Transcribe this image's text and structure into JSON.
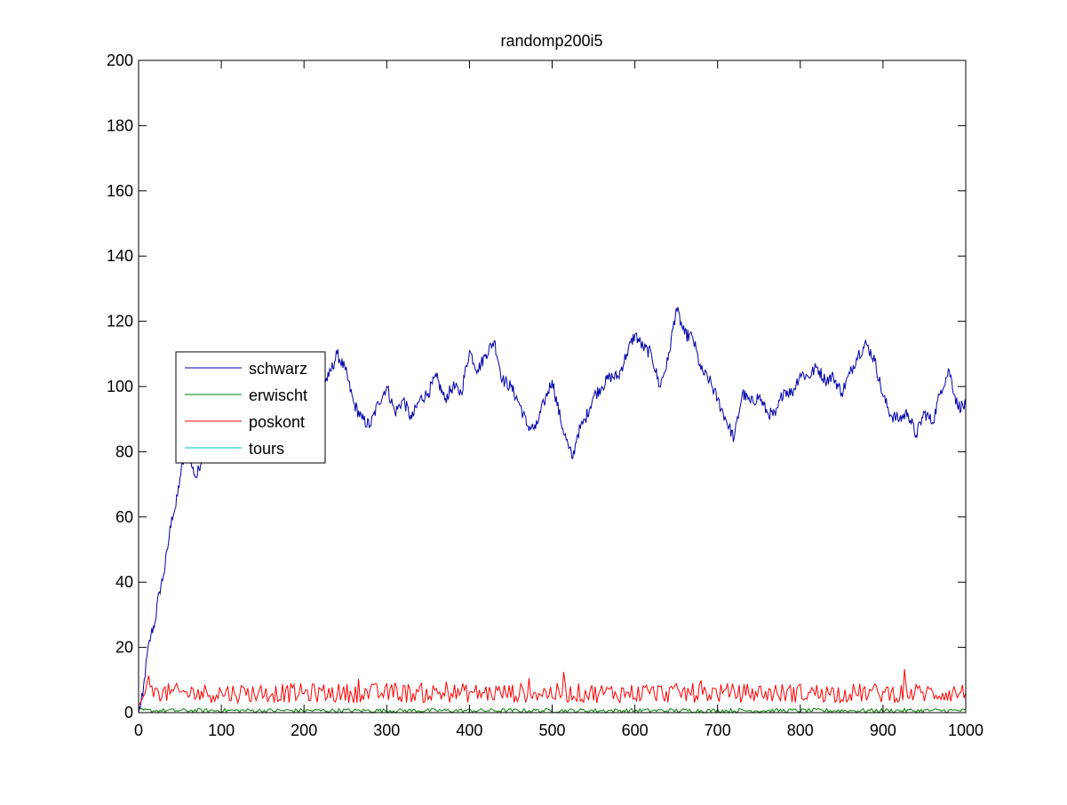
{
  "chart_data": {
    "type": "line",
    "title": "randomp200i5",
    "xlabel": "",
    "ylabel": "",
    "xlim": [
      0,
      1000
    ],
    "ylim": [
      0,
      200
    ],
    "xticks": [
      0,
      100,
      200,
      300,
      400,
      500,
      600,
      700,
      800,
      900,
      1000
    ],
    "yticks": [
      0,
      20,
      40,
      60,
      80,
      100,
      120,
      140,
      160,
      180,
      200
    ],
    "grid": false,
    "legend_position": "middle-left",
    "series": [
      {
        "name": "schwarz",
        "color": "#0000aa",
        "x": [
          0,
          5,
          10,
          15,
          20,
          25,
          30,
          35,
          40,
          45,
          50,
          55,
          60,
          65,
          70,
          80,
          100,
          120,
          150,
          180,
          200,
          210,
          220,
          230,
          240,
          250,
          260,
          270,
          280,
          290,
          300,
          310,
          320,
          330,
          340,
          350,
          360,
          370,
          380,
          390,
          400,
          410,
          420,
          430,
          440,
          450,
          460,
          470,
          480,
          490,
          500,
          510,
          520,
          525,
          530,
          540,
          550,
          560,
          570,
          580,
          590,
          600,
          610,
          620,
          630,
          640,
          650,
          660,
          670,
          680,
          690,
          700,
          710,
          720,
          730,
          740,
          750,
          760,
          770,
          780,
          790,
          800,
          810,
          820,
          830,
          840,
          850,
          860,
          870,
          880,
          890,
          900,
          910,
          920,
          930,
          940,
          950,
          960,
          970,
          980,
          990,
          1000
        ],
        "y": [
          0,
          5,
          17,
          24,
          28,
          37,
          42,
          50,
          60,
          63,
          72,
          78,
          80,
          75,
          72,
          82,
          90,
          95,
          98,
          100,
          102,
          104,
          100,
          103,
          110,
          105,
          95,
          90,
          88,
          95,
          100,
          92,
          96,
          90,
          96,
          98,
          103,
          96,
          100,
          98,
          111,
          105,
          110,
          114,
          102,
          100,
          95,
          88,
          87,
          95,
          102,
          90,
          81,
          78,
          85,
          90,
          97,
          100,
          103,
          103,
          110,
          116,
          112,
          110,
          100,
          108,
          124,
          116,
          115,
          105,
          102,
          96,
          90,
          84,
          98,
          95,
          97,
          92,
          91,
          99,
          98,
          104,
          103,
          106,
          102,
          103,
          98,
          104,
          110,
          113,
          108,
          97,
          91,
          90,
          92,
          85,
          92,
          89,
          99,
          105,
          94,
          94
        ]
      },
      {
        "name": "erwischt",
        "color": "#008000",
        "x": [],
        "y": []
      },
      {
        "name": "poskont",
        "color": "#ff0000",
        "x": [],
        "y": []
      },
      {
        "name": "tours",
        "color": "#00bfbf",
        "x": [],
        "y": []
      }
    ]
  }
}
